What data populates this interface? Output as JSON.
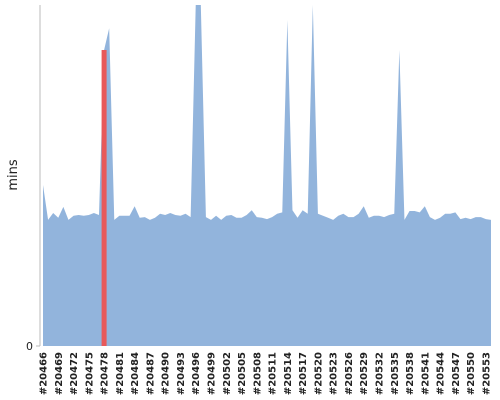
{
  "chart_data": {
    "type": "area",
    "y_label": "mins",
    "categories": [
      "#20466",
      null,
      null,
      "#20469",
      null,
      null,
      "#20472",
      null,
      null,
      "#20475",
      null,
      null,
      "#20478",
      null,
      null,
      "#20481",
      null,
      null,
      "#20484",
      null,
      null,
      "#20487",
      null,
      null,
      "#20490",
      null,
      null,
      "#20493",
      null,
      null,
      "#20496",
      null,
      null,
      "#20499",
      null,
      null,
      "#20502",
      null,
      null,
      "#20505",
      null,
      null,
      "#20508",
      null,
      null,
      "#20511",
      null,
      null,
      "#20514",
      null,
      null,
      "#20517",
      null,
      null,
      "#20520",
      null,
      null,
      "#20523",
      null,
      null,
      "#20526",
      null,
      null,
      "#20529",
      null,
      null,
      "#20532",
      null,
      null,
      "#20535",
      null,
      null,
      "#20538",
      null,
      null,
      "#20541",
      null,
      null,
      "#20544",
      null,
      null,
      "#20547",
      null,
      null,
      "#20550",
      null,
      null,
      "#20553",
      null
    ],
    "values": [
      23.6,
      18.5,
      19.5,
      18.8,
      20.4,
      18.5,
      19.1,
      19.2,
      19.1,
      19.2,
      19.5,
      19.2,
      43.4,
      46.6,
      18.5,
      19.1,
      19.1,
      19.1,
      20.5,
      18.8,
      18.9,
      18.5,
      18.8,
      19.4,
      19.2,
      19.5,
      19.2,
      19.1,
      19.4,
      18.9,
      50,
      50,
      18.9,
      18.5,
      19.1,
      18.5,
      19.1,
      19.2,
      18.8,
      18.8,
      19.2,
      19.9,
      18.9,
      18.8,
      18.6,
      18.9,
      19.4,
      19.6,
      47.8,
      19.9,
      18.8,
      19.9,
      19.4,
      50,
      19.4,
      19.1,
      18.8,
      18.5,
      19.1,
      19.4,
      18.9,
      18.9,
      19.4,
      20.5,
      18.8,
      19.1,
      19.1,
      18.9,
      19.2,
      19.4,
      43.4,
      18.5,
      19.8,
      19.8,
      19.6,
      20.5,
      18.9,
      18.5,
      18.8,
      19.4,
      19.4,
      19.6,
      18.6,
      18.8,
      18.6,
      18.9,
      18.9,
      18.6,
      18.5
    ],
    "color": "#92b4dc",
    "highlight": {
      "index": 12,
      "color": "#e8595a"
    },
    "ylim": [
      0,
      50
    ],
    "yticks": [
      0
    ]
  }
}
